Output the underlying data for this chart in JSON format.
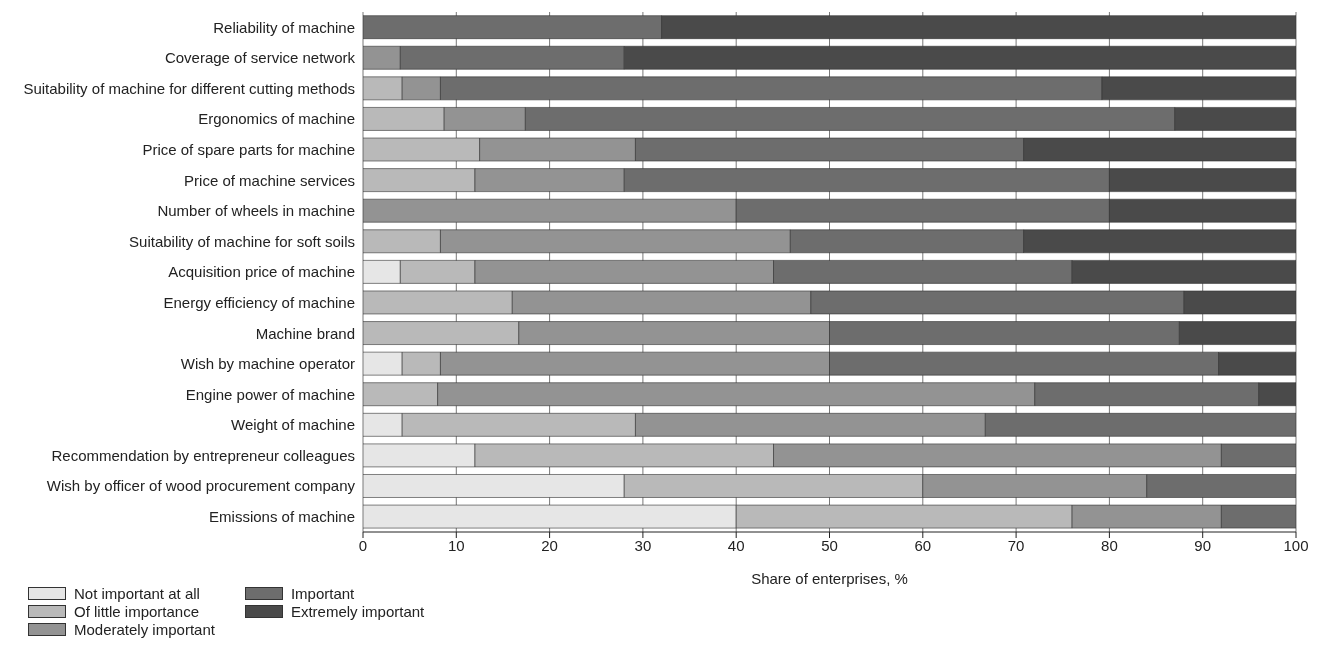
{
  "chart_data": {
    "type": "bar",
    "orientation": "horizontal",
    "stacked": true,
    "xlabel": "Share of enterprises, %",
    "categories": [
      "Reliability of machine",
      "Coverage of service network",
      "Suitability of machine for different cutting methods",
      "Ergonomics of machine",
      "Price of spare parts for machine",
      "Price of machine services",
      "Number of wheels in machine",
      "Suitability of machine for soft soils",
      "Acquisition price of machine",
      "Energy efficiency of machine",
      "Machine brand",
      "Wish by machine operator",
      "Engine power of machine",
      "Weight of machine",
      "Recommendation by entrepreneur colleagues",
      "Wish by officer of wood procurement company",
      "Emissions of machine"
    ],
    "series": [
      {
        "name": "Not important at all",
        "color": "#e6e6e6",
        "values": [
          0,
          0,
          0,
          0,
          0,
          0,
          0,
          0,
          4,
          0,
          0,
          4.2,
          0,
          4.2,
          12,
          28,
          40
        ]
      },
      {
        "name": "Of little importance",
        "color": "#b9b9b9",
        "values": [
          0,
          0,
          4.2,
          8.7,
          12.5,
          12,
          0,
          8.3,
          8,
          16,
          16.7,
          4.1,
          8,
          25,
          32,
          32,
          36
        ]
      },
      {
        "name": "Moderately important",
        "color": "#939393",
        "values": [
          0,
          4,
          4.1,
          8.7,
          16.7,
          16,
          40,
          37.5,
          32,
          32,
          33.3,
          41.7,
          64,
          37.5,
          48,
          24,
          16
        ]
      },
      {
        "name": "Important",
        "color": "#6d6d6d",
        "values": [
          32,
          24,
          70.9,
          69.6,
          41.6,
          52,
          40,
          25,
          32,
          40,
          37.5,
          41.7,
          24,
          33.3,
          8,
          16,
          8
        ]
      },
      {
        "name": "Extremely important",
        "color": "#4a4a4a",
        "values": [
          68,
          72,
          20.8,
          13,
          29.2,
          20,
          20,
          29.2,
          24,
          12,
          12.5,
          8.3,
          4,
          0,
          0,
          0,
          0
        ]
      }
    ],
    "xlim": [
      0,
      100
    ],
    "xticks": [
      0,
      10,
      20,
      30,
      40,
      50,
      60,
      70,
      80,
      90,
      100
    ],
    "grid": "x",
    "legend": "bottom left"
  }
}
